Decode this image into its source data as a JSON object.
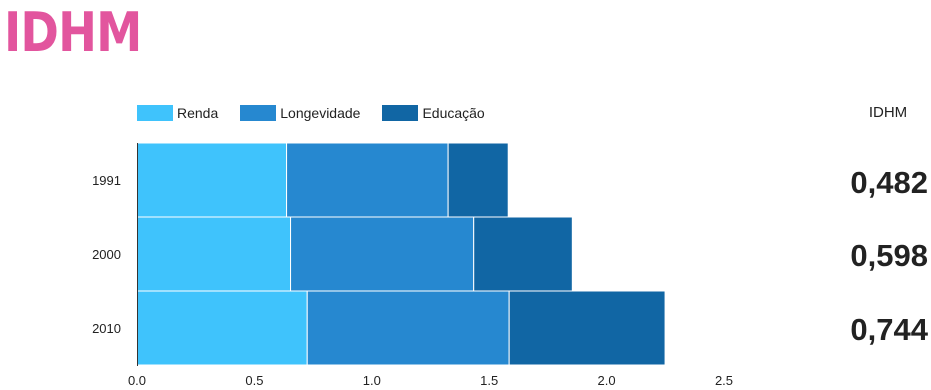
{
  "page": {
    "title": "IDHM"
  },
  "idhm": {
    "header": "IDHM",
    "values": [
      "0,482",
      "0,598",
      "0,744"
    ]
  },
  "colors": {
    "title": "#e2559e",
    "renda": "#3fc3fc",
    "longevidade": "#2688d0",
    "educacao": "#1166a4"
  },
  "chart_data": {
    "type": "bar",
    "orientation": "horizontal",
    "stacked": true,
    "categories": [
      "1991",
      "2000",
      "2010"
    ],
    "series": [
      {
        "name": "Renda",
        "values": [
          0.637,
          0.654,
          0.725
        ]
      },
      {
        "name": "Longevidade",
        "values": [
          0.688,
          0.78,
          0.86
        ]
      },
      {
        "name": "Educação",
        "values": [
          0.256,
          0.42,
          0.664
        ]
      }
    ],
    "xlim": [
      0,
      2.5
    ],
    "xticks": [
      "0.0",
      "0.5",
      "1.0",
      "1.5",
      "2.0",
      "2.5"
    ],
    "legend_position": "top-left",
    "grid": false
  }
}
